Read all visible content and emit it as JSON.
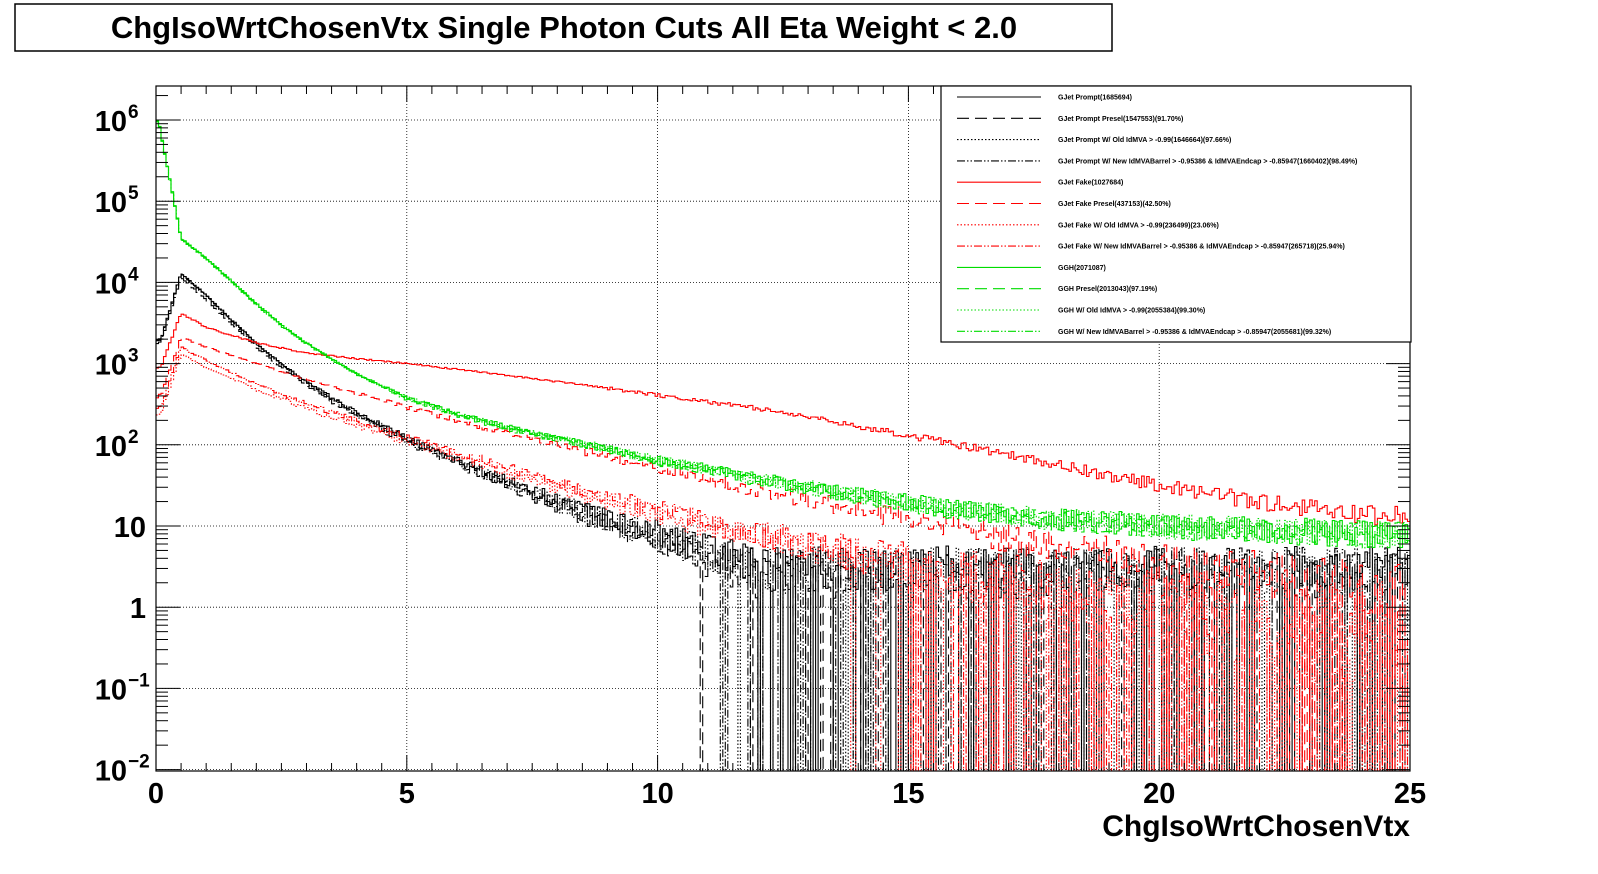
{
  "chart_data": {
    "type": "line",
    "title": "ChgIsoWrtChosenVtx Single Photon Cuts All Eta Weight < 2.0",
    "xlabel": "ChgIsoWrtChosenVtx",
    "ylabel": "",
    "x_range": [
      0,
      25
    ],
    "y_range": [
      0.01,
      2000000
    ],
    "y_scale": "log",
    "grid": true,
    "legend_position": "top-right",
    "x_ticks": [
      {
        "value": 0,
        "label": "0"
      },
      {
        "value": 5,
        "label": "5"
      },
      {
        "value": 10,
        "label": "10"
      },
      {
        "value": 15,
        "label": "15"
      },
      {
        "value": 20,
        "label": "20"
      },
      {
        "value": 25,
        "label": "25"
      }
    ],
    "y_ticks": [
      {
        "value": 1000000,
        "base": "10",
        "exp": "6"
      },
      {
        "value": 100000,
        "base": "10",
        "exp": "5"
      },
      {
        "value": 10000,
        "base": "10",
        "exp": "4"
      },
      {
        "value": 1000,
        "base": "10",
        "exp": "3"
      },
      {
        "value": 100,
        "base": "10",
        "exp": "2"
      },
      {
        "value": 10,
        "base": "10",
        "exp": ""
      },
      {
        "value": 1,
        "base": "1",
        "exp": ""
      },
      {
        "value": 0.1,
        "base": "10",
        "exp": "−1"
      },
      {
        "value": 0.01,
        "base": "10",
        "exp": "−2"
      }
    ],
    "series": [
      {
        "name": "GJet Prompt(1685694)",
        "color": "#000000",
        "dash": "solid",
        "x": [
          0.1,
          0.5,
          1,
          1.5,
          2,
          2.5,
          3,
          3.5,
          4,
          5,
          6,
          7,
          8,
          9,
          10,
          11,
          12
        ],
        "values": [
          2000,
          13000,
          7000,
          3500,
          1800,
          1000,
          600,
          380,
          250,
          120,
          65,
          35,
          20,
          12,
          8,
          5,
          3
        ]
      },
      {
        "name": "GJet Prompt Presel(1547553)(91.70%)",
        "color": "#000000",
        "dash": "long-dash",
        "x": [
          0.1,
          0.5,
          1,
          1.5,
          2,
          2.5,
          3,
          3.5,
          4,
          5,
          6,
          7,
          8,
          9,
          10,
          11,
          12
        ],
        "values": [
          1800,
          11500,
          6200,
          3100,
          1600,
          900,
          540,
          340,
          225,
          110,
          58,
          31,
          18,
          11,
          7,
          4,
          2.5
        ]
      },
      {
        "name": "GJet Prompt W/ Old IdMVA > -0.99(1646664)(97.66%)",
        "color": "#000000",
        "dash": "dotted",
        "x": [
          0.1,
          0.5,
          1,
          1.5,
          2,
          2.5,
          3,
          3.5,
          4,
          5,
          6,
          7,
          8,
          9,
          10,
          11,
          12
        ],
        "values": [
          1950,
          12600,
          6800,
          3400,
          1750,
          970,
          580,
          370,
          240,
          115,
          62,
          33,
          19,
          11,
          7.5,
          4.5,
          2.8
        ]
      },
      {
        "name": "GJet Prompt W/ New IdMVABarrel > -0.95386 & IdMVAEndcap > -0.85947(1660402)(98.49%)",
        "color": "#000000",
        "dash": "dash-dot-dot",
        "x": [
          0.1,
          0.5,
          1,
          1.5,
          2,
          2.5,
          3,
          3.5,
          4,
          5,
          6,
          7,
          8,
          9,
          10,
          11,
          12
        ],
        "values": [
          1970,
          12800,
          6900,
          3450,
          1770,
          985,
          590,
          375,
          245,
          118,
          63,
          34,
          19.5,
          11.5,
          7.8,
          4.8,
          2.9
        ]
      },
      {
        "name": "GJet Fake(1027684)",
        "color": "#ff0000",
        "dash": "solid",
        "x": [
          0.1,
          0.5,
          1,
          2,
          3,
          4,
          5,
          6,
          7,
          8,
          9,
          10,
          11,
          12,
          13,
          14,
          15,
          16,
          17,
          18,
          19,
          20,
          21,
          22,
          23,
          24,
          25
        ],
        "values": [
          900,
          4200,
          2800,
          1800,
          1350,
          1150,
          1000,
          850,
          720,
          600,
          500,
          410,
          340,
          280,
          220,
          170,
          130,
          100,
          75,
          56,
          42,
          32,
          25,
          20,
          17,
          14,
          13
        ]
      },
      {
        "name": "GJet Fake Presel(437153)(42.50%)",
        "color": "#ff0000",
        "dash": "long-dash",
        "x": [
          0.1,
          0.5,
          1,
          2,
          3,
          4,
          5,
          6,
          7,
          8,
          9,
          10,
          11,
          12,
          13,
          14,
          15,
          16,
          17,
          18,
          19,
          20,
          21,
          22,
          23,
          24,
          25
        ],
        "values": [
          400,
          2100,
          1600,
          1000,
          640,
          430,
          290,
          200,
          140,
          100,
          72,
          52,
          38,
          28,
          21,
          16,
          12,
          9,
          7,
          5.5,
          4.5,
          3.5,
          3,
          2.5,
          2,
          1.7,
          1.5
        ]
      },
      {
        "name": "GJet Fake W/ Old IdMVA > -0.99(236499)(23.06%)",
        "color": "#ff0000",
        "dash": "dotted",
        "x": [
          0.1,
          0.5,
          1,
          2,
          3,
          4,
          5,
          6,
          7,
          8,
          9,
          10,
          11,
          12,
          13,
          14,
          15,
          16,
          17,
          18,
          19,
          20,
          21,
          22,
          23,
          24,
          25
        ],
        "values": [
          250,
          1300,
          900,
          480,
          280,
          175,
          110,
          70,
          45,
          30,
          20,
          14,
          10,
          7,
          5,
          4,
          3,
          2.3,
          1.8,
          1.4,
          1.1,
          0.9,
          0.7,
          0.6,
          0.5,
          0.45,
          0.4
        ]
      },
      {
        "name": "GJet Fake W/ New IdMVABarrel > -0.95386 & IdMVAEndcap > -0.85947(265718)(25.94%)",
        "color": "#ff0000",
        "dash": "dash-dot-dot",
        "x": [
          0.1,
          0.5,
          1,
          2,
          3,
          4,
          5,
          6,
          7,
          8,
          9,
          10,
          11,
          12,
          13,
          14,
          15,
          16,
          17,
          18,
          19,
          20,
          21,
          22,
          23,
          24,
          25
        ],
        "values": [
          300,
          1600,
          1100,
          560,
          320,
          200,
          125,
          80,
          52,
          35,
          24,
          16,
          11,
          8,
          6,
          4.5,
          3.5,
          2.7,
          2.1,
          1.6,
          1.3,
          1,
          0.8,
          0.7,
          0.6,
          0.5,
          0.45
        ]
      },
      {
        "name": "GGH(2071087)",
        "color": "#00dd00",
        "dash": "solid",
        "x": [
          0.05,
          0.5,
          1,
          1.5,
          2,
          2.5,
          3,
          3.5,
          4,
          5,
          6,
          7,
          8,
          9,
          10,
          11,
          12,
          13,
          14,
          15,
          16,
          17,
          18,
          19,
          20,
          21,
          22,
          23,
          24,
          25
        ],
        "values": [
          1000000,
          35000,
          20000,
          10500,
          5500,
          3000,
          1800,
          1150,
          750,
          380,
          240,
          165,
          120,
          90,
          65,
          50,
          38,
          30,
          24,
          20,
          16,
          14,
          12,
          11,
          10,
          9.5,
          9,
          8.5,
          8,
          8
        ]
      },
      {
        "name": "GGH Presel(2013043)(97.19%)",
        "color": "#00dd00",
        "dash": "long-dash",
        "x": [
          0.05,
          0.5,
          1,
          1.5,
          2,
          2.5,
          3,
          3.5,
          4,
          5,
          6,
          7,
          8,
          9,
          10,
          11,
          12,
          13,
          14,
          15,
          16,
          17,
          18,
          19,
          20,
          21,
          22,
          23,
          24,
          25
        ],
        "values": [
          970000,
          34000,
          19500,
          10200,
          5350,
          2920,
          1750,
          1120,
          730,
          370,
          233,
          160,
          117,
          87,
          63,
          48,
          37,
          29,
          23,
          19,
          15.5,
          13.5,
          11.6,
          10.6,
          9.7,
          9.2,
          8.7,
          8.2,
          7.8,
          7.7
        ]
      },
      {
        "name": "GGH W/ Old IdMVA > -0.99(2055384)(99.30%)",
        "color": "#00dd00",
        "dash": "dotted",
        "x": [
          0.05,
          0.5,
          1,
          1.5,
          2,
          2.5,
          3,
          3.5,
          4,
          5,
          6,
          7,
          8,
          9,
          10,
          11,
          12,
          13,
          14,
          15,
          16,
          17,
          18,
          19,
          20,
          21,
          22,
          23,
          24,
          25
        ],
        "values": [
          990000,
          34700,
          19900,
          10400,
          5460,
          2980,
          1790,
          1140,
          745,
          377,
          238,
          164,
          119,
          89,
          64.5,
          49.5,
          37.7,
          29.8,
          23.8,
          19.8,
          15.9,
          13.9,
          11.9,
          10.9,
          9.9,
          9.4,
          8.9,
          8.4,
          7.9,
          7.9
        ]
      },
      {
        "name": "GGH W/ New IdMVABarrel > -0.95386 & IdMVAEndcap > -0.85947(2055681)(99.32%)",
        "color": "#00dd00",
        "dash": "dash-dot-dot",
        "x": [
          0.05,
          0.5,
          1,
          1.5,
          2,
          2.5,
          3,
          3.5,
          4,
          5,
          6,
          7,
          8,
          9,
          10,
          11,
          12,
          13,
          14,
          15,
          16,
          17,
          18,
          19,
          20,
          21,
          22,
          23,
          24,
          25
        ],
        "values": [
          990000,
          34750,
          19900,
          10410,
          5460,
          2980,
          1790,
          1140,
          746,
          377,
          238,
          164,
          119,
          89,
          64.6,
          49.6,
          37.7,
          29.8,
          23.8,
          19.8,
          15.9,
          13.9,
          11.9,
          10.9,
          9.9,
          9.4,
          8.9,
          8.4,
          7.9,
          7.9
        ]
      }
    ]
  }
}
